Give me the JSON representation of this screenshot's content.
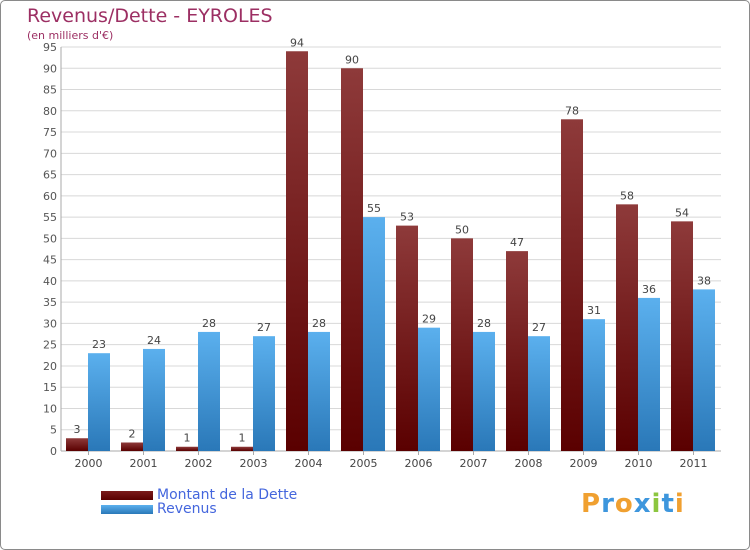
{
  "chart_data": {
    "type": "bar",
    "title": "Revenus/Dette - EYROLES",
    "subtitle": "(en milliers d'€)",
    "categories": [
      "2000",
      "2001",
      "2002",
      "2003",
      "2004",
      "2005",
      "2006",
      "2007",
      "2008",
      "2009",
      "2010",
      "2011"
    ],
    "series": [
      {
        "name": "Montant de la Dette",
        "color": "#7a1a1a",
        "values": [
          3,
          2,
          1,
          1,
          94,
          90,
          53,
          50,
          47,
          78,
          58,
          54
        ]
      },
      {
        "name": "Revenus",
        "color": "#3d96dd",
        "values": [
          23,
          24,
          28,
          27,
          28,
          55,
          29,
          28,
          27,
          31,
          36,
          38
        ]
      }
    ],
    "ylim": [
      0,
      95
    ],
    "ytick_step": 5,
    "grid": true,
    "legend_position": "bottom-left"
  },
  "legend": {
    "debt_label": "Montant de la Dette",
    "revenue_label": "Revenus"
  },
  "logo": {
    "letters": [
      "P",
      "r",
      "o",
      "x",
      "i",
      "t",
      "i"
    ],
    "colors": [
      "#f0a030",
      "#3d96dd",
      "#f0a030",
      "#3d96dd",
      "#8cc63f",
      "#3d96dd",
      "#f0a030"
    ]
  }
}
